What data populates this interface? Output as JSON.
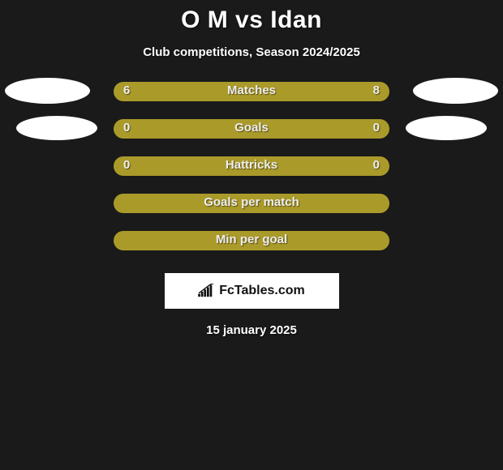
{
  "title": "O M vs Idan",
  "subtitle": "Club competitions, Season 2024/2025",
  "colors": {
    "player1": "#aa9a2a",
    "player2": "#aa9a2a",
    "single": "#aa9a2a",
    "avatar_bg": "#ffffff",
    "page_bg": "#1a1a1a"
  },
  "rows": [
    {
      "label": "Matches",
      "left_val": "6",
      "right_val": "8",
      "left_pct": 41,
      "right_pct": 59,
      "show_avatars": "big"
    },
    {
      "label": "Goals",
      "left_val": "0",
      "right_val": "0",
      "left_pct": 50,
      "right_pct": 50,
      "show_avatars": "small"
    },
    {
      "label": "Hattricks",
      "left_val": "0",
      "right_val": "0",
      "left_pct": 50,
      "right_pct": 50,
      "show_avatars": "none"
    },
    {
      "label": "Goals per match",
      "single": true,
      "show_avatars": "none"
    },
    {
      "label": "Min per goal",
      "single": true,
      "show_avatars": "none"
    }
  ],
  "brand": "FcTables.com",
  "date": "15 january 2025"
}
